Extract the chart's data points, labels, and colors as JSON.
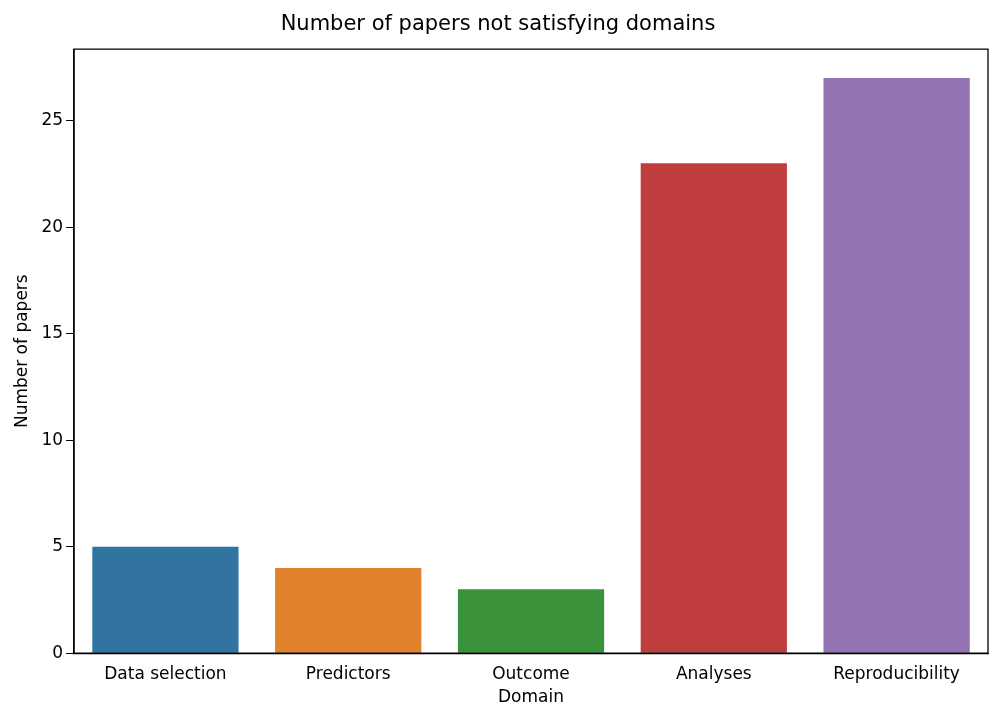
{
  "chart_data": {
    "type": "bar",
    "title": "Number of papers not satisfying domains",
    "xlabel": "Domain",
    "ylabel": "Number of papers",
    "categories": [
      "Data selection",
      "Predictors",
      "Outcome",
      "Analyses",
      "Reproducibility"
    ],
    "values": [
      5,
      4,
      3,
      23,
      27
    ],
    "colors": [
      "#3274a1",
      "#e1812c",
      "#3a923a",
      "#c03d3e",
      "#9372b2"
    ],
    "ylim": [
      0,
      28.35
    ],
    "yticks": [
      0,
      5,
      10,
      15,
      20,
      25
    ],
    "grid": false,
    "legend": false
  }
}
